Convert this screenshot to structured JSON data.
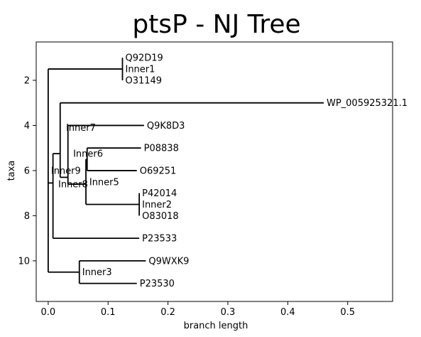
{
  "chart_data": {
    "type": "tree",
    "title": "ptsP - NJ Tree",
    "xlabel": "branch length",
    "ylabel": "taxa",
    "xlim": [
      -0.02,
      0.575
    ],
    "ylim": [
      11.8,
      0.3
    ],
    "xticks": [
      0.0,
      0.1,
      0.2,
      0.3,
      0.4,
      0.5
    ],
    "xtick_labels": [
      "0.0",
      "0.1",
      "0.2",
      "0.3",
      "0.4",
      "0.5"
    ],
    "yticks": [
      2,
      4,
      6,
      8,
      10
    ],
    "ytick_labels": [
      "2",
      "4",
      "6",
      "8",
      "10"
    ],
    "nodes": [
      {
        "id": "root",
        "x": 0.0,
        "y": 6.6,
        "parent": null,
        "label": ""
      },
      {
        "id": "Inner8",
        "x": 0.008,
        "y": 6.55,
        "parent": "root",
        "label": "Inner8"
      },
      {
        "id": "Inner1",
        "x": 0.124,
        "y": 1.5,
        "parent": "root",
        "label": "Inner1"
      },
      {
        "id": "Inner3",
        "x": 0.052,
        "y": 10.5,
        "parent": "root",
        "label": "Inner3"
      },
      {
        "id": "Inner9",
        "x": 0.02,
        "y": 5.25,
        "parent": "Inner8",
        "label": "Inner9"
      },
      {
        "id": "Inner7",
        "x": 0.033,
        "y": 6.3,
        "parent": "Inner9",
        "label": "Inner7"
      },
      {
        "id": "Inner6",
        "x": 0.063,
        "y": 6.6,
        "parent": "Inner7",
        "label": "Inner6"
      },
      {
        "id": "Inner5",
        "x": 0.065,
        "y": 5.5,
        "parent": "Inner6",
        "label": "Inner5"
      },
      {
        "id": "Inner2",
        "x": 0.152,
        "y": 7.5,
        "parent": "Inner6",
        "label": "Inner2"
      },
      {
        "id": "Q92D19",
        "x": 0.124,
        "y": 1.0,
        "parent": "Inner1",
        "label": "Q92D19"
      },
      {
        "id": "O31149",
        "x": 0.124,
        "y": 2.0,
        "parent": "Inner1",
        "label": "O31149"
      },
      {
        "id": "WP_005925321.1",
        "x": 0.46,
        "y": 3.0,
        "parent": "Inner9",
        "label": "WP_005925321.1"
      },
      {
        "id": "Q9K8D3",
        "x": 0.16,
        "y": 4.0,
        "parent": "Inner7",
        "label": "Q9K8D3"
      },
      {
        "id": "P08838",
        "x": 0.155,
        "y": 5.0,
        "parent": "Inner5",
        "label": "P08838"
      },
      {
        "id": "O69251",
        "x": 0.148,
        "y": 6.0,
        "parent": "Inner5",
        "label": "O69251"
      },
      {
        "id": "P42014",
        "x": 0.152,
        "y": 7.0,
        "parent": "Inner2",
        "label": "P42014"
      },
      {
        "id": "O83018",
        "x": 0.152,
        "y": 8.0,
        "parent": "Inner2",
        "label": "O83018"
      },
      {
        "id": "P23533",
        "x": 0.152,
        "y": 9.0,
        "parent": "Inner8",
        "label": "P23533"
      },
      {
        "id": "Q9WXK9",
        "x": 0.163,
        "y": 10.0,
        "parent": "Inner3",
        "label": "Q9WXK9"
      },
      {
        "id": "P23530",
        "x": 0.148,
        "y": 11.0,
        "parent": "Inner3",
        "label": "P23530"
      }
    ],
    "inner_label_positions": {
      "Inner1": {
        "x": 0.124,
        "y": 1.5
      },
      "Inner3": {
        "x": 0.052,
        "y": 10.5
      },
      "Inner7": {
        "x": 0.025,
        "y": 4.1
      },
      "Inner6": {
        "x": 0.037,
        "y": 5.25
      },
      "Inner4": {
        "x": 0.068,
        "y": 5.55
      },
      "Inner9": {
        "x": 0.0,
        "y": 6.0
      },
      "Inner5": {
        "x": 0.064,
        "y": 6.5
      },
      "Inner8": {
        "x": 0.012,
        "y": 6.6
      },
      "Inner2": {
        "x": 0.152,
        "y": 7.5
      }
    }
  }
}
